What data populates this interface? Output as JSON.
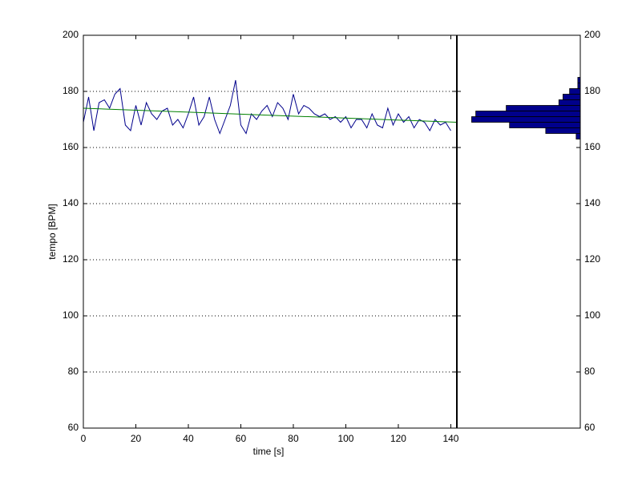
{
  "chart_data": {
    "type": "line",
    "xlabel": "time [s]",
    "ylabel": "tempo [BPM]",
    "xlim": [
      0,
      142.3
    ],
    "ylim": [
      60,
      200
    ],
    "xticks": [
      0,
      20,
      40,
      60,
      80,
      100,
      120,
      140
    ],
    "yticks": [
      60,
      80,
      100,
      120,
      140,
      160,
      180,
      200
    ],
    "grid": true,
    "series": [
      {
        "color": "#00008b",
        "x": [
          0,
          2,
          4,
          6,
          8,
          10,
          12,
          14,
          16,
          18,
          20,
          22,
          24,
          26,
          28,
          30,
          32,
          34,
          36,
          38,
          40,
          42,
          44,
          46,
          48,
          50,
          52,
          54,
          56,
          58,
          60,
          62,
          64,
          66,
          68,
          70,
          72,
          74,
          76,
          78,
          80,
          82,
          84,
          86,
          88,
          90,
          92,
          94,
          96,
          98,
          100,
          102,
          104,
          106,
          108,
          110,
          112,
          114,
          116,
          118,
          120,
          122,
          124,
          126,
          128,
          130,
          132,
          134,
          136,
          138,
          140
        ],
        "values": [
          169,
          178,
          166,
          176,
          177,
          174,
          179,
          181,
          168,
          166,
          175,
          168,
          176,
          172,
          170,
          173,
          174,
          168,
          170,
          167,
          172,
          178,
          168,
          171,
          178,
          170,
          165,
          170,
          175,
          184,
          168,
          165,
          172,
          170,
          173,
          175,
          171,
          176,
          174,
          170,
          179,
          172,
          175,
          174,
          172,
          171,
          172,
          170,
          171,
          169,
          171,
          167,
          170,
          170,
          167,
          172,
          168,
          167,
          174,
          168,
          172,
          169,
          171,
          167,
          170,
          169,
          166,
          170,
          168,
          169,
          166
        ]
      },
      {
        "color": "#008000",
        "x": [
          0,
          142.3
        ],
        "values": [
          174,
          169
        ]
      }
    ],
    "histogram": {
      "type": "histogram",
      "orientation": "horizontal",
      "color": "#00008b",
      "bins": [
        163,
        165,
        167,
        169,
        171,
        173,
        175,
        177,
        179,
        181,
        183,
        185
      ],
      "counts": [
        5,
        42,
        86,
        132,
        127,
        90,
        26,
        21,
        13,
        3,
        3
      ],
      "xlim": [
        0,
        150
      ]
    }
  }
}
